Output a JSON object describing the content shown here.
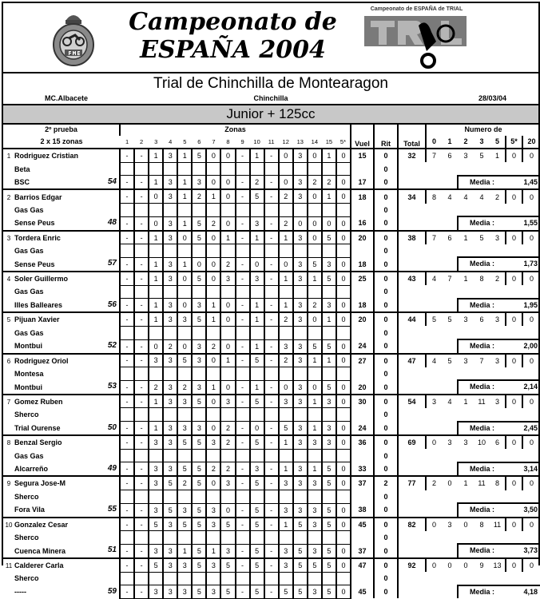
{
  "header": {
    "title_line1": "Campeonato de",
    "title_line2": "ESPAÑA 2004",
    "left_logo_text": "FME",
    "right_logo_text": "Campeonato de ESPAÑA de TRIAL",
    "colors": {
      "logo_grey": "#7a7a7a",
      "category_band": "#c8c8c8"
    }
  },
  "event": {
    "name": "Trial de Chinchilla de Montearagon",
    "club": "MC.Albacete",
    "place": "Chinchilla",
    "date": "28/03/04"
  },
  "category": "Junior + 125cc",
  "table": {
    "prueba": "2º prueba",
    "zonas_count": "2 x 15 zonas",
    "zonas_label": "Zonas",
    "zone_headers": [
      "1",
      "2",
      "3",
      "4",
      "5",
      "6",
      "7",
      "8",
      "9",
      "10",
      "11",
      "12",
      "13",
      "14",
      "15",
      "5*"
    ],
    "vuel": "Vuel",
    "rit": "Rit",
    "total": "Total",
    "numero_de": "Numero de",
    "count_headers": [
      "0",
      "1",
      "2",
      "3",
      "5",
      "5*",
      "20"
    ],
    "media_label": "Media :"
  },
  "riders": [
    {
      "pos": "1",
      "name": "Rodriguez Cristian",
      "brand": "Beta",
      "club": "BSC",
      "dorsal": "54",
      "lap1": [
        "-",
        "-",
        "1",
        "3",
        "1",
        "5",
        "0",
        "0",
        "-",
        "1",
        "-",
        "0",
        "3",
        "0",
        "1",
        "0"
      ],
      "vuel1": "15",
      "rit1": "0",
      "rit_mid": "0",
      "lap2": [
        "-",
        "-",
        "1",
        "3",
        "1",
        "3",
        "0",
        "0",
        "-",
        "2",
        "-",
        "0",
        "3",
        "2",
        "2",
        "0"
      ],
      "vuel2": "17",
      "rit2": "0",
      "total": "32",
      "counts": [
        "7",
        "6",
        "3",
        "5",
        "1",
        "0",
        "0"
      ],
      "media": "1,45"
    },
    {
      "pos": "2",
      "name": "Barrios Edgar",
      "brand": "Gas Gas",
      "club": "Sense Peus",
      "dorsal": "48",
      "lap1": [
        "-",
        "-",
        "0",
        "3",
        "1",
        "2",
        "1",
        "0",
        "-",
        "5",
        "-",
        "2",
        "3",
        "0",
        "1",
        "0"
      ],
      "vuel1": "18",
      "rit1": "0",
      "rit_mid": "0",
      "lap2": [
        "-",
        "-",
        "0",
        "3",
        "1",
        "5",
        "2",
        "0",
        "-",
        "3",
        "-",
        "2",
        "0",
        "0",
        "0",
        "0"
      ],
      "vuel2": "16",
      "rit2": "0",
      "total": "34",
      "counts": [
        "8",
        "4",
        "4",
        "4",
        "2",
        "0",
        "0"
      ],
      "media": "1,55"
    },
    {
      "pos": "3",
      "name": "Tordera Enric",
      "brand": "Gas Gas",
      "club": "Sense Peus",
      "dorsal": "57",
      "lap1": [
        "-",
        "-",
        "1",
        "3",
        "0",
        "5",
        "0",
        "1",
        "-",
        "1",
        "-",
        "1",
        "3",
        "0",
        "5",
        "0"
      ],
      "vuel1": "20",
      "rit1": "0",
      "rit_mid": "0",
      "lap2": [
        "-",
        "-",
        "1",
        "3",
        "1",
        "0",
        "0",
        "2",
        "-",
        "0",
        "-",
        "0",
        "3",
        "5",
        "3",
        "0"
      ],
      "vuel2": "18",
      "rit2": "0",
      "total": "38",
      "counts": [
        "7",
        "6",
        "1",
        "5",
        "3",
        "0",
        "0"
      ],
      "media": "1,73"
    },
    {
      "pos": "4",
      "name": "Soler Guillermo",
      "brand": "Gas Gas",
      "club": "Illes Balleares",
      "dorsal": "56",
      "lap1": [
        "-",
        "-",
        "1",
        "3",
        "0",
        "5",
        "0",
        "3",
        "-",
        "3",
        "-",
        "1",
        "3",
        "1",
        "5",
        "0"
      ],
      "vuel1": "25",
      "rit1": "0",
      "rit_mid": "0",
      "lap2": [
        "-",
        "-",
        "1",
        "3",
        "0",
        "3",
        "1",
        "0",
        "-",
        "1",
        "-",
        "1",
        "3",
        "2",
        "3",
        "0"
      ],
      "vuel2": "18",
      "rit2": "0",
      "total": "43",
      "counts": [
        "4",
        "7",
        "1",
        "8",
        "2",
        "0",
        "0"
      ],
      "media": "1,95"
    },
    {
      "pos": "5",
      "name": "Pijuan Xavier",
      "brand": "Gas Gas",
      "club": "Montbui",
      "dorsal": "52",
      "lap1": [
        "-",
        "-",
        "1",
        "3",
        "3",
        "5",
        "1",
        "0",
        "-",
        "1",
        "-",
        "2",
        "3",
        "0",
        "1",
        "0"
      ],
      "vuel1": "20",
      "rit1": "0",
      "rit_mid": "0",
      "lap2": [
        "-",
        "-",
        "0",
        "2",
        "0",
        "3",
        "2",
        "0",
        "-",
        "1",
        "-",
        "3",
        "3",
        "5",
        "5",
        "0"
      ],
      "vuel2": "24",
      "rit2": "0",
      "total": "44",
      "counts": [
        "5",
        "5",
        "3",
        "6",
        "3",
        "0",
        "0"
      ],
      "media": "2,00"
    },
    {
      "pos": "6",
      "name": "Rodriguez Oriol",
      "brand": "Montesa",
      "club": "Montbui",
      "dorsal": "53",
      "lap1": [
        "-",
        "-",
        "3",
        "3",
        "5",
        "3",
        "0",
        "1",
        "-",
        "5",
        "-",
        "2",
        "3",
        "1",
        "1",
        "0"
      ],
      "vuel1": "27",
      "rit1": "0",
      "rit_mid": "0",
      "lap2": [
        "-",
        "-",
        "2",
        "3",
        "2",
        "3",
        "1",
        "0",
        "-",
        "1",
        "-",
        "0",
        "3",
        "0",
        "5",
        "0"
      ],
      "vuel2": "20",
      "rit2": "0",
      "total": "47",
      "counts": [
        "4",
        "5",
        "3",
        "7",
        "3",
        "0",
        "0"
      ],
      "media": "2,14"
    },
    {
      "pos": "7",
      "name": "Gomez Ruben",
      "brand": "Sherco",
      "club": "Trial Ourense",
      "dorsal": "50",
      "lap1": [
        "-",
        "-",
        "1",
        "3",
        "3",
        "5",
        "0",
        "3",
        "-",
        "5",
        "-",
        "3",
        "3",
        "1",
        "3",
        "0"
      ],
      "vuel1": "30",
      "rit1": "0",
      "rit_mid": "0",
      "lap2": [
        "-",
        "-",
        "1",
        "3",
        "3",
        "3",
        "0",
        "2",
        "-",
        "0",
        "-",
        "5",
        "3",
        "1",
        "3",
        "0"
      ],
      "vuel2": "24",
      "rit2": "0",
      "total": "54",
      "counts": [
        "3",
        "4",
        "1",
        "11",
        "3",
        "0",
        "0"
      ],
      "media": "2,45"
    },
    {
      "pos": "8",
      "name": "Benzal Sergio",
      "brand": "Gas Gas",
      "club": "Alcarreño",
      "dorsal": "49",
      "lap1": [
        "-",
        "-",
        "3",
        "3",
        "5",
        "5",
        "3",
        "2",
        "-",
        "5",
        "-",
        "1",
        "3",
        "3",
        "3",
        "0"
      ],
      "vuel1": "36",
      "rit1": "0",
      "rit_mid": "0",
      "lap2": [
        "-",
        "-",
        "3",
        "3",
        "5",
        "5",
        "2",
        "2",
        "-",
        "3",
        "-",
        "1",
        "3",
        "1",
        "5",
        "0"
      ],
      "vuel2": "33",
      "rit2": "0",
      "total": "69",
      "counts": [
        "0",
        "3",
        "3",
        "10",
        "6",
        "0",
        "0"
      ],
      "media": "3,14"
    },
    {
      "pos": "9",
      "name": "Segura Jose-M",
      "brand": "Sherco",
      "club": "Fora Vila",
      "dorsal": "55",
      "lap1": [
        "-",
        "-",
        "3",
        "5",
        "2",
        "5",
        "0",
        "3",
        "-",
        "5",
        "-",
        "3",
        "3",
        "3",
        "5",
        "0"
      ],
      "vuel1": "37",
      "rit1": "2",
      "rit_mid": "0",
      "lap2": [
        "-",
        "-",
        "3",
        "5",
        "3",
        "5",
        "3",
        "0",
        "-",
        "5",
        "-",
        "3",
        "3",
        "3",
        "5",
        "0"
      ],
      "vuel2": "38",
      "rit2": "0",
      "total": "77",
      "counts": [
        "2",
        "0",
        "1",
        "11",
        "8",
        "0",
        "0"
      ],
      "media": "3,50"
    },
    {
      "pos": "10",
      "name": "Gonzalez Cesar",
      "brand": "Sherco",
      "club": "Cuenca Minera",
      "dorsal": "51",
      "lap1": [
        "-",
        "-",
        "5",
        "3",
        "5",
        "5",
        "3",
        "5",
        "-",
        "5",
        "-",
        "1",
        "5",
        "3",
        "5",
        "0"
      ],
      "vuel1": "45",
      "rit1": "0",
      "rit_mid": "0",
      "lap2": [
        "-",
        "-",
        "3",
        "3",
        "1",
        "5",
        "1",
        "3",
        "-",
        "5",
        "-",
        "3",
        "5",
        "3",
        "5",
        "0"
      ],
      "vuel2": "37",
      "rit2": "0",
      "total": "82",
      "counts": [
        "0",
        "3",
        "0",
        "8",
        "11",
        "0",
        "0"
      ],
      "media": "3,73"
    },
    {
      "pos": "11",
      "name": "Calderer Carla",
      "brand": "Sherco",
      "club": "-----",
      "dorsal": "59",
      "lap1": [
        "-",
        "-",
        "5",
        "3",
        "3",
        "5",
        "3",
        "5",
        "-",
        "5",
        "-",
        "3",
        "5",
        "5",
        "5",
        "0"
      ],
      "vuel1": "47",
      "rit1": "0",
      "rit_mid": "0",
      "lap2": [
        "-",
        "-",
        "3",
        "3",
        "3",
        "5",
        "3",
        "5",
        "-",
        "5",
        "-",
        "5",
        "5",
        "3",
        "5",
        "0"
      ],
      "vuel2": "45",
      "rit2": "0",
      "total": "92",
      "counts": [
        "0",
        "0",
        "0",
        "9",
        "13",
        "0",
        "0"
      ],
      "media": "4,18"
    }
  ]
}
